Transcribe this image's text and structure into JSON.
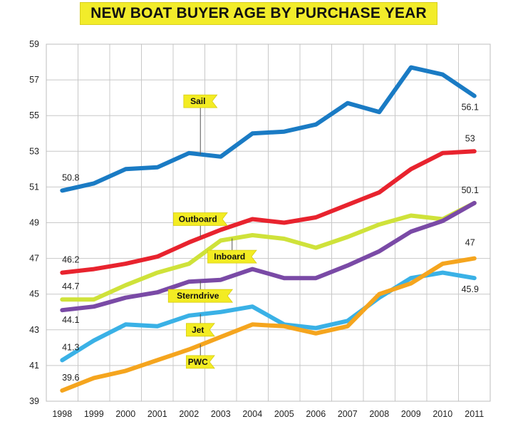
{
  "chart_data": {
    "type": "line",
    "title": "NEW BOAT BUYER AGE BY PURCHASE YEAR",
    "xlabel": "",
    "ylabel": "",
    "x": [
      "1998",
      "1999",
      "2000",
      "2001",
      "2002",
      "2003",
      "2004",
      "2005",
      "2006",
      "2007",
      "2008",
      "2009",
      "2010",
      "2011"
    ],
    "ylim": [
      39,
      59
    ],
    "yticks": [
      39,
      41,
      43,
      45,
      47,
      49,
      51,
      53,
      55,
      57,
      59
    ],
    "grid": true,
    "series": [
      {
        "name": "Sail",
        "color": "#1a7bc4",
        "values": [
          50.8,
          51.2,
          52.0,
          52.1,
          52.9,
          52.7,
          54.0,
          54.1,
          54.5,
          55.7,
          55.2,
          57.7,
          57.3,
          56.1
        ],
        "start_label": "50.8",
        "end_label": "56.1"
      },
      {
        "name": "Outboard",
        "color": "#e8232e",
        "values": [
          46.2,
          46.4,
          46.7,
          47.1,
          47.9,
          48.6,
          49.2,
          49.0,
          49.3,
          50.0,
          50.7,
          52.0,
          52.9,
          53.0
        ],
        "start_label": "46.2",
        "end_label": "53"
      },
      {
        "name": "Inboard",
        "color": "#cfe23a",
        "values": [
          44.7,
          44.7,
          45.5,
          46.2,
          46.7,
          48.0,
          48.3,
          48.1,
          47.6,
          48.2,
          48.9,
          49.4,
          49.2,
          50.1
        ],
        "start_label": "44.7",
        "end_label": ""
      },
      {
        "name": "Sterndrive",
        "color": "#7a4aa6",
        "values": [
          44.1,
          44.3,
          44.8,
          45.1,
          45.7,
          45.8,
          46.4,
          45.9,
          45.9,
          46.6,
          47.4,
          48.5,
          49.1,
          50.1
        ],
        "start_label": "44.1",
        "end_label": "50.1"
      },
      {
        "name": "Jet",
        "color": "#3ab1e6",
        "values": [
          41.3,
          42.4,
          43.3,
          43.2,
          43.8,
          44.0,
          44.3,
          43.3,
          43.1,
          43.5,
          44.8,
          45.9,
          46.2,
          45.9
        ],
        "start_label": "41.3",
        "end_label": "45.9"
      },
      {
        "name": "PWC",
        "color": "#f5a51e",
        "values": [
          39.6,
          40.3,
          40.7,
          41.3,
          41.9,
          42.6,
          43.3,
          43.2,
          42.8,
          43.2,
          45.0,
          45.6,
          46.7,
          47.0
        ],
        "start_label": "39.6",
        "end_label": "47"
      }
    ],
    "tags": [
      {
        "text": "Sail",
        "series": "Sail",
        "anchor_x": "2002",
        "y": 55.8
      },
      {
        "text": "Outboard",
        "series": "Outboard",
        "anchor_x": "2002",
        "y": 49.2
      },
      {
        "text": "Inboard",
        "series": "Inboard",
        "anchor_x": "2003",
        "y": 47.1
      },
      {
        "text": "Sterndrive",
        "series": "Sterndrive",
        "anchor_x": "2002",
        "y": 44.9
      },
      {
        "text": "Jet",
        "series": "Jet",
        "anchor_x": "2002",
        "y": 43.0
      },
      {
        "text": "PWC",
        "series": "PWC",
        "anchor_x": "2002",
        "y": 41.2
      }
    ]
  }
}
